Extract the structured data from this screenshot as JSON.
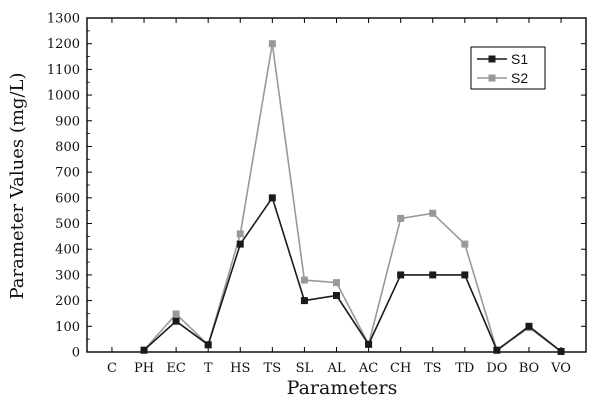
{
  "chart_data": {
    "type": "line",
    "title": "",
    "xlabel": "Parameters",
    "ylabel": "Parameter Values (mg/L)",
    "ylim": [
      0,
      1300
    ],
    "yticks": [
      0,
      100,
      200,
      300,
      400,
      500,
      600,
      700,
      800,
      900,
      1000,
      1100,
      1200,
      1300
    ],
    "categories": [
      "C",
      "PH",
      "EC",
      "T",
      "HS",
      "TS",
      "SL",
      "AL",
      "AC",
      "CH",
      "TS",
      "TD",
      "DO",
      "BO",
      "VO"
    ],
    "series": [
      {
        "name": "S1",
        "color": "#1a1a1a",
        "values": [
          null,
          7,
          120,
          28,
          420,
          600,
          200,
          220,
          30,
          300,
          300,
          300,
          7,
          100,
          2
        ]
      },
      {
        "name": "S2",
        "color": "#999999",
        "values": [
          null,
          7,
          148,
          28,
          460,
          1200,
          280,
          270,
          30,
          520,
          540,
          420,
          7,
          95,
          2
        ]
      }
    ],
    "legend_position": "top-right",
    "grid": false
  }
}
